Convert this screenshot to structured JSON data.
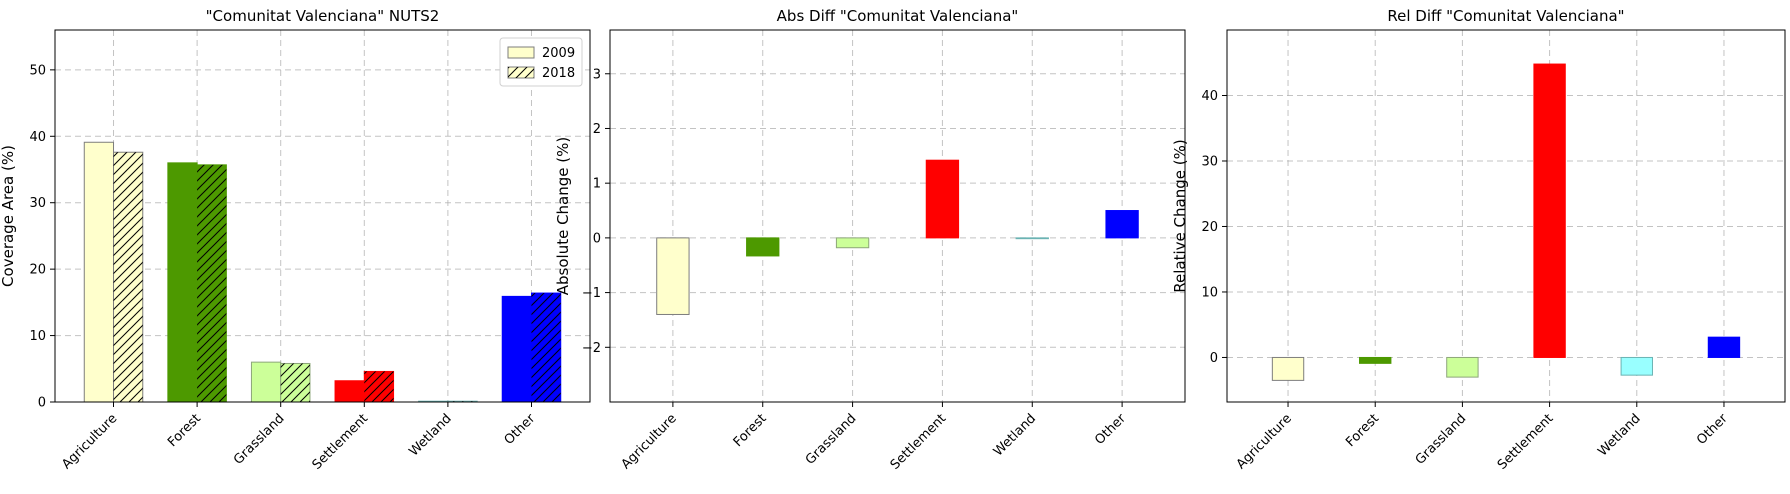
{
  "categories": [
    "Agriculture",
    "Forest",
    "Grassland",
    "Settlement",
    "Wetland",
    "Other"
  ],
  "colors": [
    "#ffffcc",
    "#4d9900",
    "#ccff99",
    "#ff0000",
    "#99ffff",
    "#0000ff"
  ],
  "chart_data": [
    {
      "type": "bar",
      "title": "\"Comunitat Valenciana\" NUTS2",
      "xlabel": "",
      "ylabel": "Coverage Area (%)",
      "ylim": [
        0,
        56
      ],
      "yticks": [
        0,
        10,
        20,
        30,
        40,
        50
      ],
      "grid": true,
      "legend": "top-right",
      "categories": [
        "Agriculture",
        "Forest",
        "Grassland",
        "Settlement",
        "Wetland",
        "Other"
      ],
      "series": [
        {
          "name": "2009",
          "hatch": false,
          "values": [
            39.1,
            36.0,
            6.0,
            3.2,
            0.12,
            15.9
          ]
        },
        {
          "name": "2018",
          "hatch": true,
          "values": [
            37.6,
            35.7,
            5.8,
            4.6,
            0.12,
            16.4
          ]
        }
      ]
    },
    {
      "type": "bar",
      "title": "Abs Diff \"Comunitat Valenciana\"",
      "xlabel": "",
      "ylabel": "Absolute Change (%)",
      "ylim": [
        -3.0,
        3.8
      ],
      "yticks": [
        -2,
        -1,
        0,
        1,
        2,
        3
      ],
      "grid": true,
      "categories": [
        "Agriculture",
        "Forest",
        "Grassland",
        "Settlement",
        "Wetland",
        "Other"
      ],
      "values": [
        -1.4,
        -0.33,
        -0.18,
        1.42,
        0.0,
        0.5
      ]
    },
    {
      "type": "bar",
      "title": "Rel Diff \"Comunitat Valenciana\"",
      "xlabel": "",
      "ylabel": "Relative Change (%)",
      "ylim": [
        -6.8,
        50
      ],
      "yticks": [
        0,
        10,
        20,
        30,
        40
      ],
      "grid": true,
      "categories": [
        "Agriculture",
        "Forest",
        "Grassland",
        "Settlement",
        "Wetland",
        "Other"
      ],
      "values": [
        -3.5,
        -0.9,
        -3.0,
        44.8,
        -2.7,
        3.1
      ]
    }
  ]
}
